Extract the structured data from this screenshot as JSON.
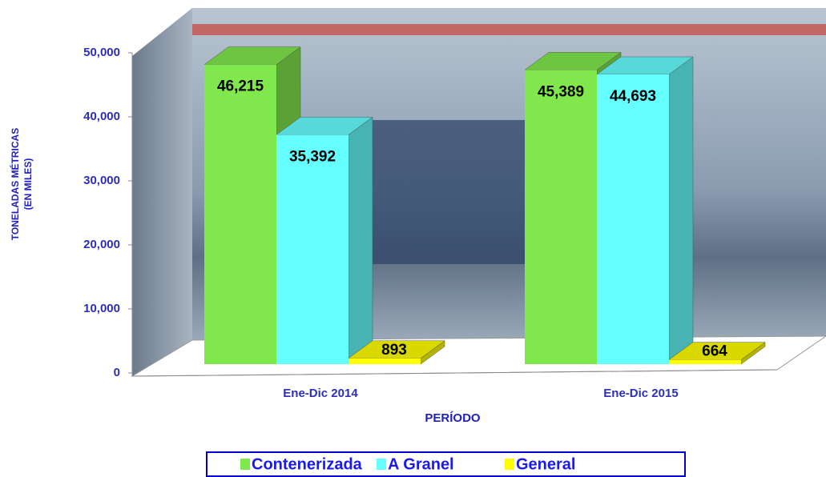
{
  "chart_data": {
    "type": "bar3d",
    "y_label": [
      "TONELADAS MÉTRICAS",
      "(EN MILES)"
    ],
    "x_label": "PERÍODO",
    "categories": [
      "Ene-Dic 2014",
      "Ene-Dic 2015"
    ],
    "series": [
      {
        "name": "Contenerizada",
        "color": "#80e84c",
        "values": [
          46215,
          45389
        ],
        "value_labels": [
          "46,215",
          "45,389"
        ]
      },
      {
        "name": "A Granel",
        "color": "#66ffff",
        "values": [
          35392,
          44693
        ],
        "value_labels": [
          "35,392",
          "44,693"
        ]
      },
      {
        "name": "General",
        "color": "#ffff00",
        "values": [
          893,
          664
        ],
        "value_labels": [
          "893",
          "664"
        ]
      }
    ],
    "ylim": [
      0,
      50000
    ],
    "yticks": [
      0,
      {
        "value": 10000,
        "label": "10,000"
      },
      {
        "value": 20000,
        "label": "20,000"
      },
      {
        "value": 30000,
        "label": "30,000"
      },
      {
        "value": 40000,
        "label": "40,000"
      },
      {
        "value": 50000,
        "label": "50,000"
      }
    ],
    "legend": "bottom"
  }
}
